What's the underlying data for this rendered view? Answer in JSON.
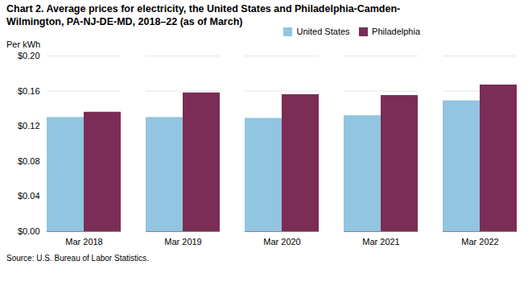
{
  "chart_data": {
    "type": "bar",
    "title": "Chart 2. Average prices for electricity, the United States and Philadelphia-Camden-\nWilmington, PA-NJ-DE-MD, 2018–22 (as of March)",
    "ylabel": "Per kWh",
    "source": "Source: U.S. Bureau of Labor Statistics.",
    "categories": [
      "Mar 2018",
      "Mar 2019",
      "Mar 2020",
      "Mar 2021",
      "Mar 2022"
    ],
    "series": [
      {
        "name": "United States",
        "color": "#92C5E0",
        "values": [
          0.13,
          0.13,
          0.129,
          0.132,
          0.149
        ]
      },
      {
        "name": "Philadelphia",
        "color": "#7B2D55",
        "values": [
          0.136,
          0.158,
          0.156,
          0.155,
          0.167
        ]
      }
    ],
    "ylim": [
      0.0,
      0.2
    ],
    "yticks": [
      {
        "value": 0.0,
        "label": "$0.00"
      },
      {
        "value": 0.04,
        "label": "$0.04"
      },
      {
        "value": 0.08,
        "label": "$0.08"
      },
      {
        "value": 0.12,
        "label": "$0.12"
      },
      {
        "value": 0.16,
        "label": "$0.16"
      },
      {
        "value": 0.2,
        "label": "$0.20"
      }
    ],
    "grid": true,
    "legend": "top"
  }
}
